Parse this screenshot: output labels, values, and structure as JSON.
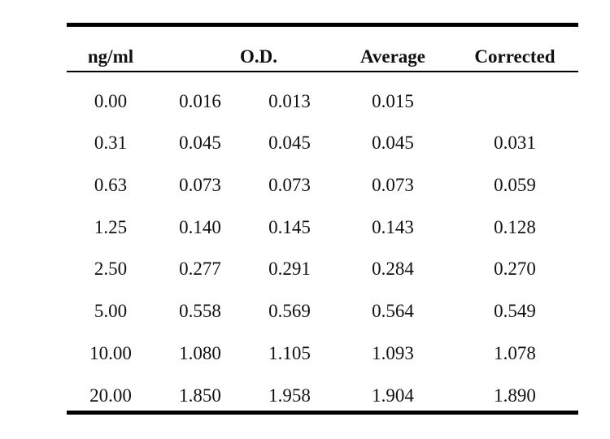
{
  "table": {
    "headers": {
      "concentration": "ng/ml",
      "od": "O.D.",
      "average": "Average",
      "corrected": "Corrected"
    },
    "rows": [
      {
        "conc": "0.00",
        "od1": "0.016",
        "od2": "0.013",
        "avg": "0.015",
        "corr": ""
      },
      {
        "conc": "0.31",
        "od1": "0.045",
        "od2": "0.045",
        "avg": "0.045",
        "corr": "0.031"
      },
      {
        "conc": "0.63",
        "od1": "0.073",
        "od2": "0.073",
        "avg": "0.073",
        "corr": "0.059"
      },
      {
        "conc": "1.25",
        "od1": "0.140",
        "od2": "0.145",
        "avg": "0.143",
        "corr": "0.128"
      },
      {
        "conc": "2.50",
        "od1": "0.277",
        "od2": "0.291",
        "avg": "0.284",
        "corr": "0.270"
      },
      {
        "conc": "5.00",
        "od1": "0.558",
        "od2": "0.569",
        "avg": "0.564",
        "corr": "0.549"
      },
      {
        "conc": "10.00",
        "od1": "1.080",
        "od2": "1.105",
        "avg": "1.093",
        "corr": "1.078"
      },
      {
        "conc": "20.00",
        "od1": "1.850",
        "od2": "1.958",
        "avg": "1.904",
        "corr": "1.890"
      }
    ]
  }
}
